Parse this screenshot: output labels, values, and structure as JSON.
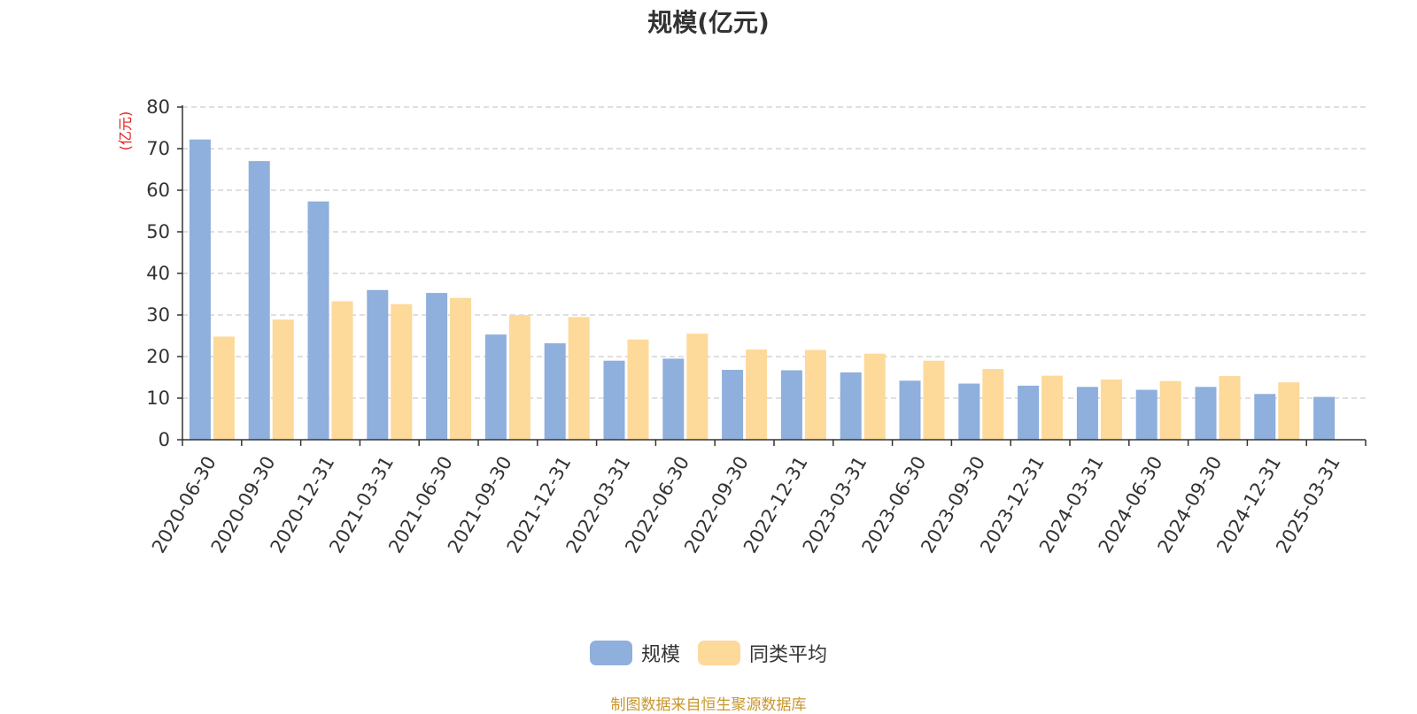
{
  "source_note": "制图数据来自恒生聚源数据库",
  "colors": {
    "series1": "#8fafdc",
    "series2": "#fdd99a",
    "grid": "#cccccc",
    "axis": "#333333",
    "unit_label": "#e0201f",
    "source_note": "#c8962c"
  },
  "chart_data": {
    "type": "bar",
    "title": "规模(亿元)",
    "ylabel": "(亿元)",
    "xlabel": "",
    "ylim": [
      0,
      80
    ],
    "yticks": [
      0,
      10,
      20,
      30,
      40,
      50,
      60,
      70,
      80
    ],
    "grid": true,
    "legend_position": "bottom",
    "categories": [
      "2020-06-30",
      "2020-09-30",
      "2020-12-31",
      "2021-03-31",
      "2021-06-30",
      "2021-09-30",
      "2021-12-31",
      "2022-03-31",
      "2022-06-30",
      "2022-09-30",
      "2022-12-31",
      "2023-03-31",
      "2023-06-30",
      "2023-09-30",
      "2023-12-31",
      "2024-03-31",
      "2024-06-30",
      "2024-09-30",
      "2024-12-31",
      "2025-03-31"
    ],
    "series": [
      {
        "name": "规模",
        "values": [
          72.2,
          67.0,
          57.3,
          36.0,
          35.3,
          25.3,
          23.2,
          19.0,
          19.5,
          16.8,
          16.7,
          16.2,
          14.2,
          13.5,
          13.0,
          12.7,
          12.0,
          12.7,
          11.0,
          10.3
        ]
      },
      {
        "name": "同类平均",
        "values": [
          24.8,
          28.9,
          33.3,
          32.6,
          34.1,
          30.0,
          29.5,
          24.1,
          25.5,
          21.7,
          21.6,
          20.7,
          19.0,
          17.0,
          15.4,
          14.5,
          14.1,
          15.3,
          13.8,
          null
        ]
      }
    ]
  }
}
